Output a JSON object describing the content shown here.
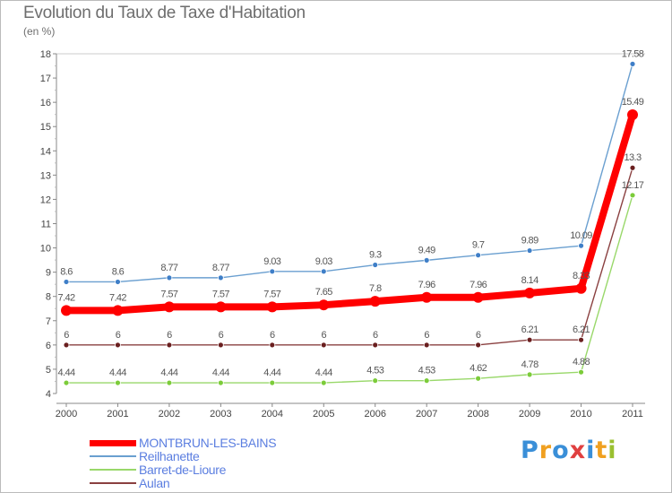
{
  "chart_data": {
    "type": "line",
    "title": "Evolution du Taux de Taxe d'Habitation",
    "subtitle": "(en %)",
    "xlabel": "",
    "ylabel": "",
    "ylim": [
      4,
      18
    ],
    "yticks": [
      "4",
      "5",
      "6",
      "7",
      "8",
      "9",
      "10",
      "11",
      "12",
      "13",
      "14",
      "15",
      "16",
      "17",
      "18"
    ],
    "categories": [
      "2000",
      "2001",
      "2002",
      "2003",
      "2004",
      "2005",
      "2006",
      "2007",
      "2008",
      "2009",
      "2010",
      "2011"
    ],
    "series": [
      {
        "name": "Reilhanette",
        "color": "#6a9fd0",
        "marker": "#3f7fc8",
        "values": [
          8.6,
          8.6,
          8.77,
          8.77,
          9.03,
          9.03,
          9.3,
          9.49,
          9.7,
          9.89,
          10.09,
          17.58
        ],
        "labels": [
          "8.6",
          "8.6",
          "8.77",
          "8.77",
          "9.03",
          "9.03",
          "9.3",
          "9.49",
          "9.7",
          "9.89",
          "10.09",
          "17.58"
        ]
      },
      {
        "name": "Barret-de-Lioure",
        "color": "#99d86a",
        "marker": "#7ccc3a",
        "values": [
          4.44,
          4.44,
          4.44,
          4.44,
          4.44,
          4.44,
          4.53,
          4.53,
          4.62,
          4.78,
          4.88,
          12.17
        ],
        "labels": [
          "4.44",
          "4.44",
          "4.44",
          "4.44",
          "4.44",
          "4.44",
          "4.53",
          "4.53",
          "4.62",
          "4.78",
          "4.88",
          "12.17"
        ]
      },
      {
        "name": "Aulan",
        "color": "#8a4040",
        "marker": "#6a1f1f",
        "values": [
          6,
          6,
          6,
          6,
          6,
          6,
          6,
          6,
          6,
          6.21,
          6.21,
          13.3
        ],
        "labels": [
          "6",
          "6",
          "6",
          "6",
          "6",
          "6",
          "6",
          "6",
          "6",
          "6.21",
          "6.21",
          "13.3"
        ]
      },
      {
        "name": "MONTBRUN-LES-BAINS",
        "color": "#ff0000",
        "marker": "#ff0000",
        "values": [
          7.42,
          7.42,
          7.57,
          7.57,
          7.57,
          7.65,
          7.8,
          7.96,
          7.96,
          8.14,
          8.33,
          15.49
        ],
        "labels": [
          "7.42",
          "7.42",
          "7.57",
          "7.57",
          "7.57",
          "7.65",
          "7.8",
          "7.96",
          "7.96",
          "8.14",
          "8.33",
          "15.49"
        ]
      }
    ],
    "legend": [
      {
        "name": "MONTBRUN-LES-BAINS",
        "color": "#ff0000",
        "emphasis": "thick"
      },
      {
        "name": "Reilhanette",
        "color": "#6a9fd0",
        "emphasis": "thin"
      },
      {
        "name": "Barret-de-Lioure",
        "color": "#99d86a",
        "emphasis": "thin"
      },
      {
        "name": "Aulan",
        "color": "#8a4040",
        "emphasis": "thin"
      }
    ]
  },
  "logo": {
    "text": "Proxiti",
    "letters": [
      "P",
      "r",
      "o",
      "x",
      "i",
      "t",
      "i"
    ],
    "colors": [
      "#3a8fd8",
      "#f0a020",
      "#3a8fd8",
      "#e04040",
      "#3a8fd8",
      "#f0a020",
      "#9ac030"
    ]
  }
}
